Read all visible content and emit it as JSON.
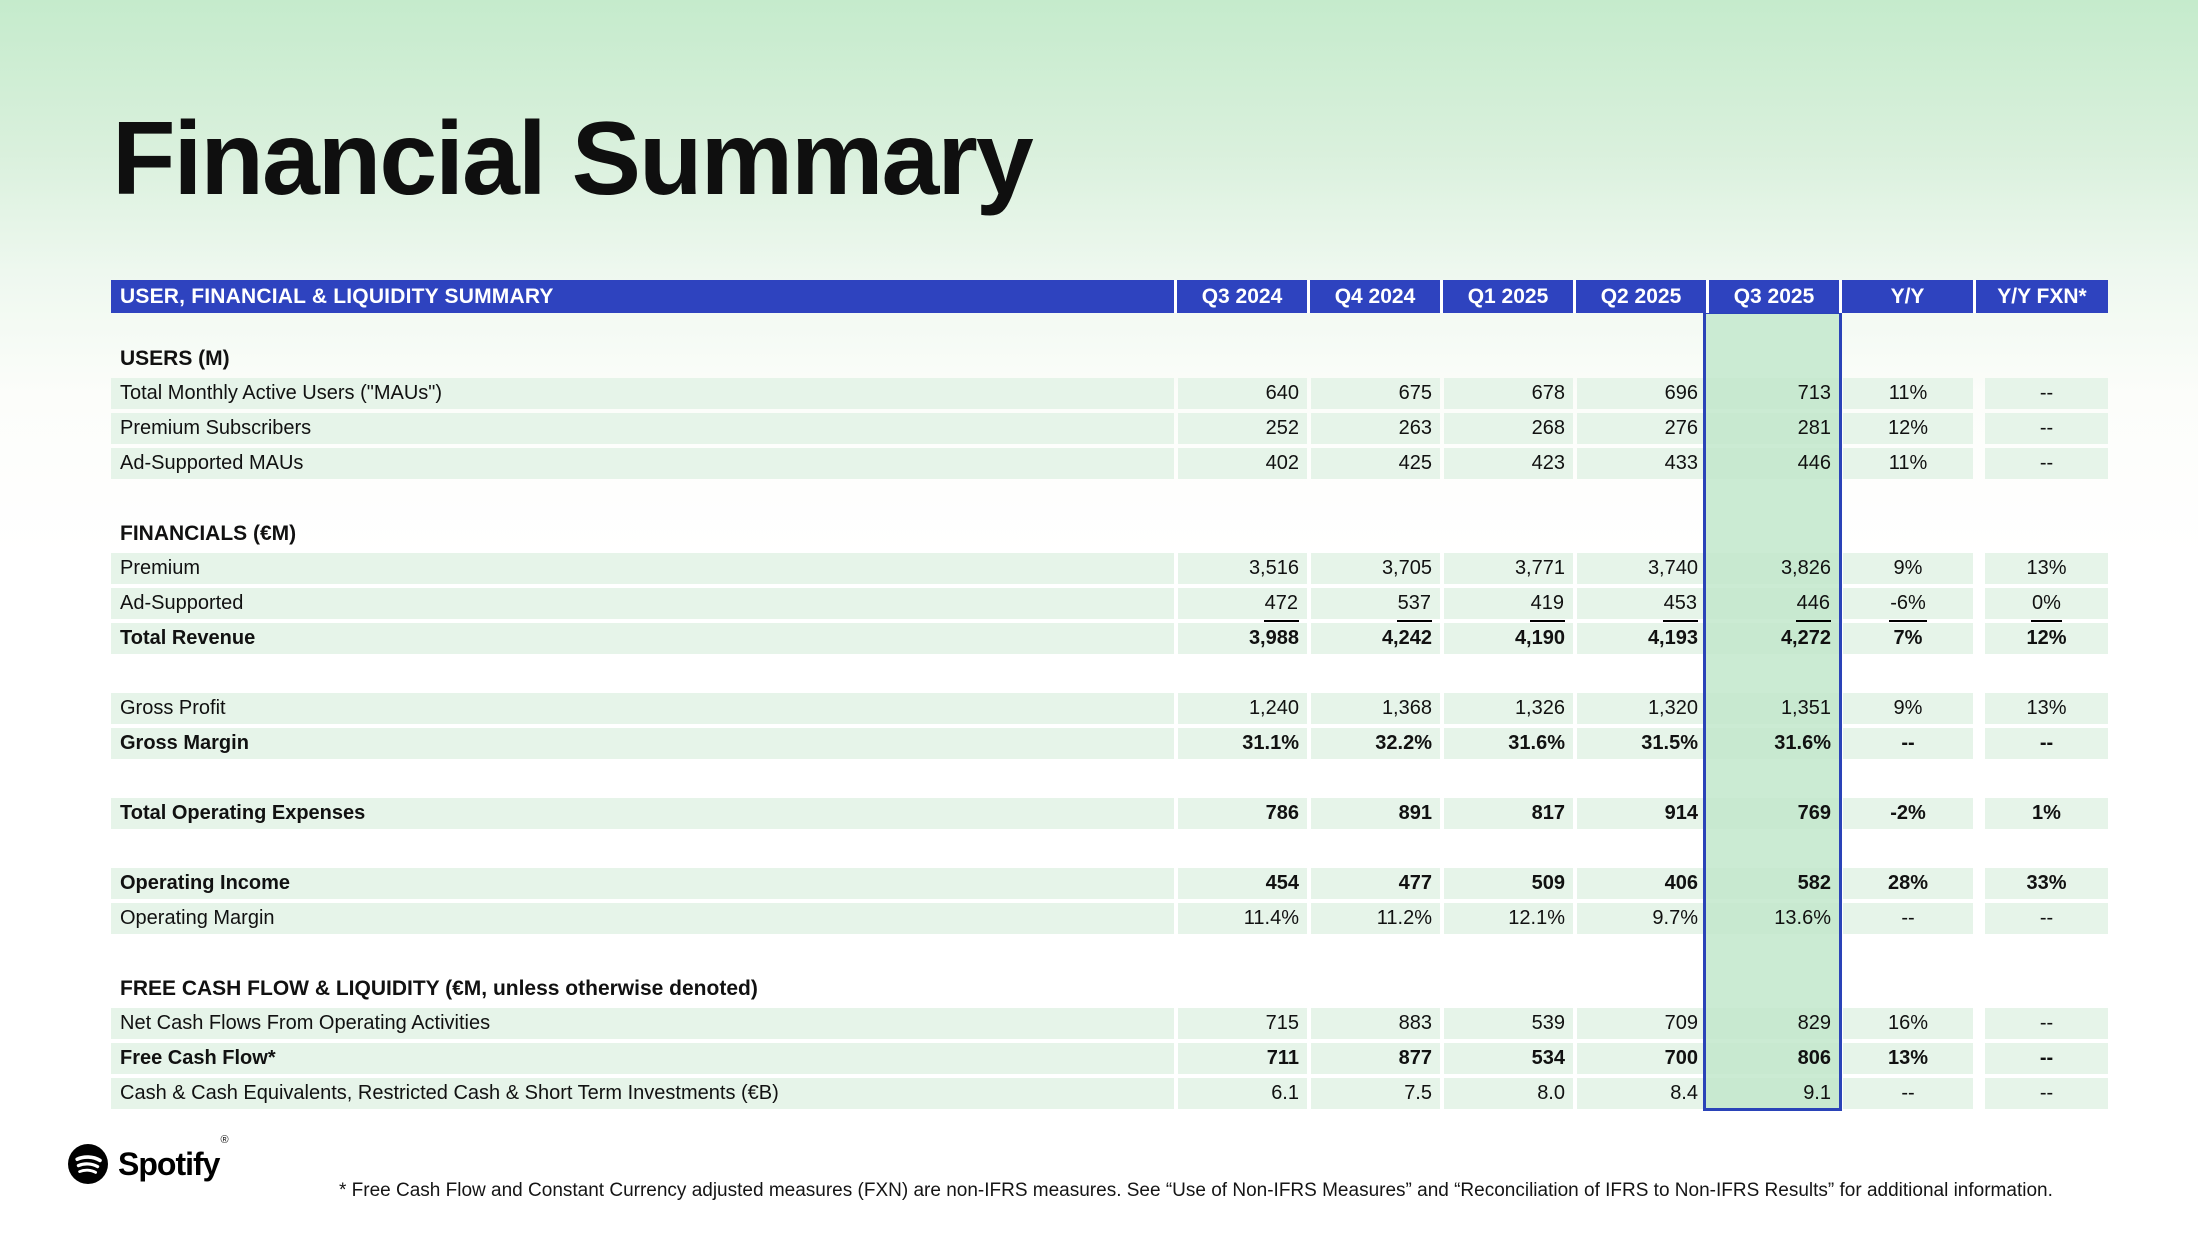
{
  "page": {
    "title": "Financial Summary"
  },
  "table": {
    "title": "USER, FINANCIAL & LIQUIDITY SUMMARY",
    "columns": [
      "Q3 2024",
      "Q4 2024",
      "Q1 2025",
      "Q2 2025",
      "Q3 2025",
      "Y/Y",
      "Y/Y FXN*"
    ],
    "highlight_column": "Q3 2025",
    "rows": [
      {
        "type": "section",
        "label": "USERS (M)"
      },
      {
        "type": "data",
        "label": "Total Monthly Active Users (\"MAUs\")",
        "values": [
          "640",
          "675",
          "678",
          "696",
          "713",
          "11%",
          "--"
        ]
      },
      {
        "type": "data",
        "label": "Premium Subscribers",
        "values": [
          "252",
          "263",
          "268",
          "276",
          "281",
          "12%",
          "--"
        ]
      },
      {
        "type": "data",
        "label": "Ad-Supported MAUs",
        "values": [
          "402",
          "425",
          "423",
          "433",
          "446",
          "11%",
          "--"
        ]
      },
      {
        "type": "blank"
      },
      {
        "type": "section",
        "label": "FINANCIALS (€M)"
      },
      {
        "type": "data",
        "label": "Premium",
        "values": [
          "3,516",
          "3,705",
          "3,771",
          "3,740",
          "3,826",
          "9%",
          "13%"
        ]
      },
      {
        "type": "data",
        "label": "Ad-Supported",
        "underline": true,
        "values": [
          "472",
          "537",
          "419",
          "453",
          "446",
          "-6%",
          "0%"
        ]
      },
      {
        "type": "data",
        "label": "Total Revenue",
        "bold": true,
        "values": [
          "3,988",
          "4,242",
          "4,190",
          "4,193",
          "4,272",
          "7%",
          "12%"
        ]
      },
      {
        "type": "blank"
      },
      {
        "type": "data",
        "label": "Gross Profit",
        "values": [
          "1,240",
          "1,368",
          "1,326",
          "1,320",
          "1,351",
          "9%",
          "13%"
        ]
      },
      {
        "type": "data",
        "label": "Gross Margin",
        "bold": true,
        "values": [
          "31.1%",
          "32.2%",
          "31.6%",
          "31.5%",
          "31.6%",
          "--",
          "--"
        ]
      },
      {
        "type": "blank"
      },
      {
        "type": "data",
        "label": "Total Operating Expenses",
        "bold": true,
        "values": [
          "786",
          "891",
          "817",
          "914",
          "769",
          "-2%",
          "1%"
        ]
      },
      {
        "type": "blank"
      },
      {
        "type": "data",
        "label": "Operating Income",
        "bold": true,
        "values": [
          "454",
          "477",
          "509",
          "406",
          "582",
          "28%",
          "33%"
        ]
      },
      {
        "type": "data",
        "label": "Operating Margin",
        "values": [
          "11.4%",
          "11.2%",
          "12.1%",
          "9.7%",
          "13.6%",
          "--",
          "--"
        ]
      },
      {
        "type": "blank"
      },
      {
        "type": "section",
        "label": "FREE CASH FLOW & LIQUIDITY (€M, unless otherwise denoted)"
      },
      {
        "type": "data",
        "label": "Net Cash Flows From Operating Activities",
        "values": [
          "715",
          "883",
          "539",
          "709",
          "829",
          "16%",
          "--"
        ]
      },
      {
        "type": "data",
        "label": "Free Cash Flow*",
        "bold": true,
        "values": [
          "711",
          "877",
          "534",
          "700",
          "806",
          "13%",
          "--"
        ]
      },
      {
        "type": "data",
        "label": "Cash & Cash Equivalents, Restricted Cash & Short Term Investments (€B)",
        "values": [
          "6.1",
          "7.5",
          "8.0",
          "8.4",
          "9.1",
          "--",
          "--"
        ]
      }
    ]
  },
  "footer": {
    "brand": "Spotify",
    "registered": "®",
    "footnote": "* Free Cash Flow and Constant Currency adjusted measures (FXN) are non-IFRS measures. See “Use of Non-IFRS Measures” and “Reconciliation of IFRS to Non-IFRS Results” for additional information."
  },
  "colors": {
    "header_bar": "#2e43bf",
    "highlight_fill": "#c8e9d0",
    "highlight_overlay": "#cbebd3",
    "highlight_border": "#2a43b8",
    "row_band": "#e6f4e9",
    "page_top_gradient": "#c5ebcc"
  }
}
